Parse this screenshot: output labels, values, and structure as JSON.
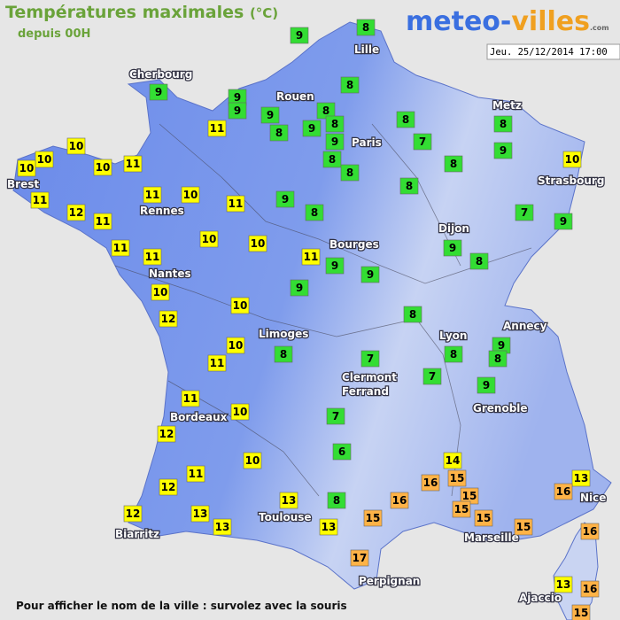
{
  "header": {
    "title": "Températures maximales",
    "unit": "(°C)",
    "subtitle": "depuis 00H",
    "logo_left": "meteo-",
    "logo_right": "villes",
    "logo_suffix": ".com",
    "date": "Jeu. 25/12/2014 17:00"
  },
  "cities": [
    "Cherbourg",
    "Lille",
    "Rouen",
    "Paris",
    "Metz",
    "Strasbourg",
    "Brest",
    "Rennes",
    "Nantes",
    "Bourges",
    "Dijon",
    "Limoges",
    "Lyon",
    "Annecy",
    "Clermont\nFerrand",
    "Grenoble",
    "Bordeaux",
    "Toulouse",
    "Nice",
    "Biarritz",
    "Marseille",
    "Perpignan",
    "Ajaccio"
  ],
  "markers": [
    {
      "value": 9,
      "color": "#33dd33"
    },
    {
      "value": 8,
      "color": "#33dd33"
    },
    {
      "value": 9,
      "color": "#33dd33"
    },
    {
      "value": 9,
      "color": "#33dd33"
    },
    {
      "value": 9,
      "color": "#33dd33"
    },
    {
      "value": 8,
      "color": "#33dd33"
    },
    {
      "value": 9,
      "color": "#33dd33"
    },
    {
      "value": 8,
      "color": "#33dd33"
    },
    {
      "value": 8,
      "color": "#33dd33"
    },
    {
      "value": 9,
      "color": "#33dd33"
    },
    {
      "value": 8,
      "color": "#33dd33"
    },
    {
      "value": 9,
      "color": "#33dd33"
    },
    {
      "value": 8,
      "color": "#33dd33"
    },
    {
      "value": 8,
      "color": "#33dd33"
    },
    {
      "value": 8,
      "color": "#33dd33"
    },
    {
      "value": 7,
      "color": "#33dd33"
    },
    {
      "value": 8,
      "color": "#33dd33"
    },
    {
      "value": 9,
      "color": "#33dd33"
    },
    {
      "value": 8,
      "color": "#33dd33"
    },
    {
      "value": 8,
      "color": "#33dd33"
    },
    {
      "value": 10,
      "color": "#ffff00"
    },
    {
      "value": 11,
      "color": "#ffff00"
    },
    {
      "value": 10,
      "color": "#ffff00"
    },
    {
      "value": 10,
      "color": "#ffff00"
    },
    {
      "value": 10,
      "color": "#ffff00"
    },
    {
      "value": 10,
      "color": "#ffff00"
    },
    {
      "value": 11,
      "color": "#ffff00"
    },
    {
      "value": 11,
      "color": "#ffff00"
    },
    {
      "value": 12,
      "color": "#ffff00"
    },
    {
      "value": 11,
      "color": "#ffff00"
    },
    {
      "value": 11,
      "color": "#ffff00"
    },
    {
      "value": 10,
      "color": "#ffff00"
    },
    {
      "value": 11,
      "color": "#ffff00"
    },
    {
      "value": 9,
      "color": "#33dd33"
    },
    {
      "value": 8,
      "color": "#33dd33"
    },
    {
      "value": 7,
      "color": "#33dd33"
    },
    {
      "value": 9,
      "color": "#33dd33"
    },
    {
      "value": 11,
      "color": "#ffff00"
    },
    {
      "value": 11,
      "color": "#ffff00"
    },
    {
      "value": 10,
      "color": "#ffff00"
    },
    {
      "value": 10,
      "color": "#ffff00"
    },
    {
      "value": 11,
      "color": "#ffff00"
    },
    {
      "value": 9,
      "color": "#33dd33"
    },
    {
      "value": 9,
      "color": "#33dd33"
    },
    {
      "value": 9,
      "color": "#33dd33"
    },
    {
      "value": 8,
      "color": "#33dd33"
    },
    {
      "value": 9,
      "color": "#33dd33"
    },
    {
      "value": 10,
      "color": "#ffff00"
    },
    {
      "value": 12,
      "color": "#ffff00"
    },
    {
      "value": 10,
      "color": "#ffff00"
    },
    {
      "value": 8,
      "color": "#33dd33"
    },
    {
      "value": 10,
      "color": "#ffff00"
    },
    {
      "value": 11,
      "color": "#ffff00"
    },
    {
      "value": 8,
      "color": "#33dd33"
    },
    {
      "value": 7,
      "color": "#33dd33"
    },
    {
      "value": 9,
      "color": "#33dd33"
    },
    {
      "value": 8,
      "color": "#33dd33"
    },
    {
      "value": 8,
      "color": "#33dd33"
    },
    {
      "value": 7,
      "color": "#33dd33"
    },
    {
      "value": 9,
      "color": "#33dd33"
    },
    {
      "value": 11,
      "color": "#ffff00"
    },
    {
      "value": 12,
      "color": "#ffff00"
    },
    {
      "value": 10,
      "color": "#ffff00"
    },
    {
      "value": 7,
      "color": "#33dd33"
    },
    {
      "value": 6,
      "color": "#33dd33"
    },
    {
      "value": 10,
      "color": "#ffff00"
    },
    {
      "value": 14,
      "color": "#ffff00"
    },
    {
      "value": 16,
      "color": "#ffb347"
    },
    {
      "value": 15,
      "color": "#ffb347"
    },
    {
      "value": 11,
      "color": "#ffff00"
    },
    {
      "value": 12,
      "color": "#ffff00"
    },
    {
      "value": 13,
      "color": "#ffff00"
    },
    {
      "value": 16,
      "color": "#ffb347"
    },
    {
      "value": 15,
      "color": "#ffb347"
    },
    {
      "value": 15,
      "color": "#ffb347"
    },
    {
      "value": 15,
      "color": "#ffb347"
    },
    {
      "value": 16,
      "color": "#ffb347"
    },
    {
      "value": 15,
      "color": "#ffb347"
    },
    {
      "value": 13,
      "color": "#ffff00"
    },
    {
      "value": 8,
      "color": "#33dd33"
    },
    {
      "value": 12,
      "color": "#ffff00"
    },
    {
      "value": 13,
      "color": "#ffff00"
    },
    {
      "value": 13,
      "color": "#ffff00"
    },
    {
      "value": 13,
      "color": "#ffff00"
    },
    {
      "value": 15,
      "color": "#ffb347"
    },
    {
      "value": 16,
      "color": "#ffb347"
    },
    {
      "value": 17,
      "color": "#ffb347"
    },
    {
      "value": 13,
      "color": "#ffff00"
    },
    {
      "value": 16,
      "color": "#ffb347"
    },
    {
      "value": 15,
      "color": "#ffb347"
    }
  ],
  "footer": "Pour afficher le nom de la ville : survolez avec la souris"
}
